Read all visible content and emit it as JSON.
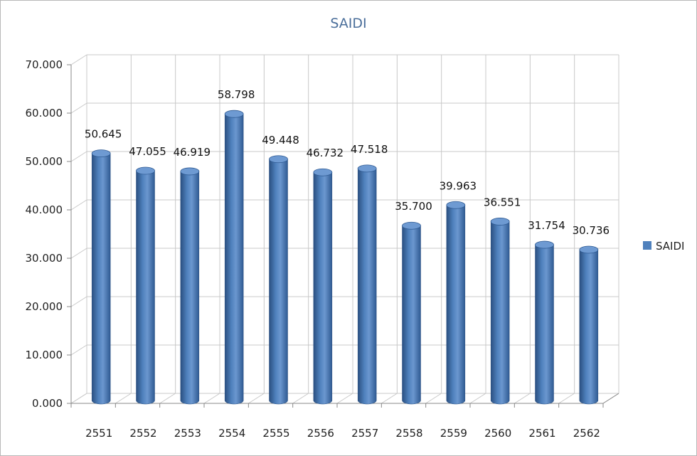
{
  "chart_data": {
    "type": "bar",
    "title": "SAIDI",
    "categories": [
      "2551",
      "2552",
      "2553",
      "2554",
      "2555",
      "2556",
      "2557",
      "2558",
      "2559",
      "2560",
      "2561",
      "2562"
    ],
    "series": [
      {
        "name": "SAIDI",
        "values": [
          50.645,
          47.055,
          46.919,
          58.798,
          49.448,
          46.732,
          47.518,
          35.7,
          39.963,
          36.551,
          31.754,
          30.736
        ],
        "data_labels": [
          "50.645",
          "47.055",
          "46.919",
          "58.798",
          "49.448",
          "46.732",
          "47.518",
          "35.700",
          "39.963",
          "36.551",
          "31.754",
          "30.736"
        ]
      }
    ],
    "y_ticks": [
      "0.000",
      "10.000",
      "20.000",
      "30.000",
      "40.000",
      "50.000",
      "60.000",
      "70.000"
    ],
    "ylim": [
      0,
      70
    ],
    "grid": true,
    "legend_position": "right",
    "colors": {
      "bar": "#4f81bd",
      "bar_dark": "#2a4f80",
      "bar_light": "#8fb0dc",
      "grid": "#c8c8c8",
      "title": "#4a6e9a"
    }
  }
}
